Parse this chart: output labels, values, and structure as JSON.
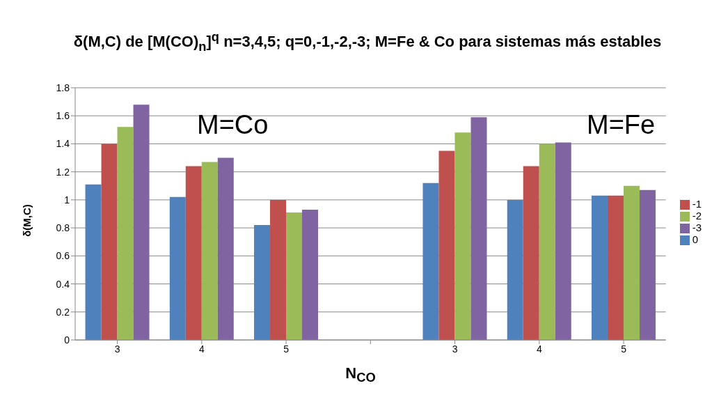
{
  "chart_data": {
    "type": "bar",
    "title": "δ(M,C) de [M(CO)$_{n}$]$^{q}$ n=3,4,5; q=0,-1,-2,-3; M=Fe & Co  para sistemas más estables",
    "xlabel": "N$_{CO}$",
    "ylabel": "δ(M,C)",
    "annotations": [
      "M=Co",
      "M=Fe"
    ],
    "categories": [
      "3",
      "4",
      "5",
      null,
      "3",
      "4",
      "5"
    ],
    "series": [
      {
        "name": "0",
        "color": "#4f81bd",
        "values": [
          1.11,
          1.02,
          0.82,
          null,
          1.12,
          1.0,
          1.03
        ]
      },
      {
        "name": "-1",
        "color": "#c0504d",
        "values": [
          1.4,
          1.24,
          1.0,
          null,
          1.35,
          1.24,
          1.03
        ]
      },
      {
        "name": "-2",
        "color": "#9bbb59",
        "values": [
          1.52,
          1.27,
          0.91,
          null,
          1.48,
          1.4,
          1.1
        ]
      },
      {
        "name": "-3",
        "color": "#8064a2",
        "values": [
          1.68,
          1.3,
          0.93,
          null,
          1.59,
          1.41,
          1.07
        ]
      }
    ],
    "ylim": [
      0,
      1.8
    ],
    "yticks": [
      0,
      0.2,
      0.4,
      0.6,
      0.8,
      1,
      1.2,
      1.4,
      1.6,
      1.8
    ],
    "grid": "y",
    "legend": "right"
  }
}
